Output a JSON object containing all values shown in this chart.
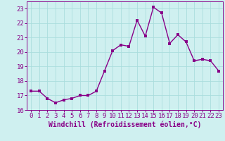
{
  "x": [
    0,
    1,
    2,
    3,
    4,
    5,
    6,
    7,
    8,
    9,
    10,
    11,
    12,
    13,
    14,
    15,
    16,
    17,
    18,
    19,
    20,
    21,
    22,
    23
  ],
  "y": [
    17.3,
    17.3,
    16.8,
    16.5,
    16.7,
    16.8,
    17.0,
    17.0,
    17.3,
    18.7,
    20.1,
    20.5,
    20.4,
    22.2,
    21.1,
    23.1,
    22.7,
    20.6,
    21.2,
    20.7,
    19.4,
    19.5,
    19.4,
    18.7
  ],
  "line_color": "#880088",
  "marker_color": "#880088",
  "bg_color": "#cff0f0",
  "grid_color": "#aadddd",
  "xlabel": "Windchill (Refroidissement éolien,°C)",
  "ylim": [
    16,
    23.5
  ],
  "xlim": [
    -0.5,
    23.5
  ],
  "yticks": [
    16,
    17,
    18,
    19,
    20,
    21,
    22,
    23
  ],
  "xticks": [
    0,
    1,
    2,
    3,
    4,
    5,
    6,
    7,
    8,
    9,
    10,
    11,
    12,
    13,
    14,
    15,
    16,
    17,
    18,
    19,
    20,
    21,
    22,
    23
  ],
  "marker_size": 2.5,
  "line_width": 1.0,
  "tick_fontsize": 6.5,
  "label_fontsize": 7.0
}
